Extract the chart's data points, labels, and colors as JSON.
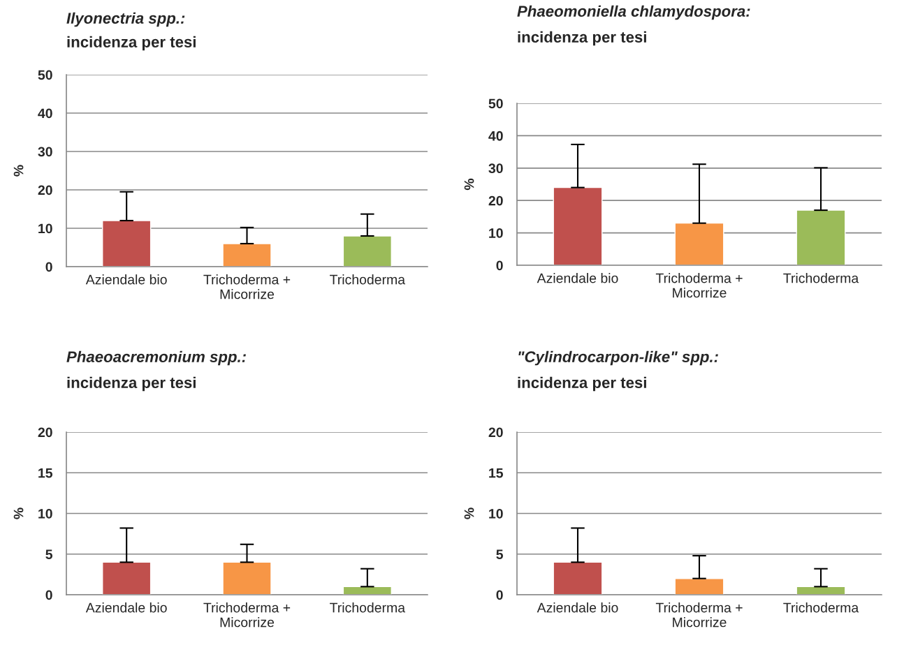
{
  "chart_data": [
    {
      "type": "bar",
      "title": "Ilyonectria spp.:",
      "subtitle": "incidenza per tesi",
      "ylabel": "%",
      "categories": [
        "Aziendale bio",
        "Trichoderma +\nMicorrize",
        "Trichoderma"
      ],
      "values": [
        12,
        6,
        8
      ],
      "colors": [
        "#c0504d",
        "#f79646",
        "#9bbb59"
      ],
      "errors": [
        [
          12,
          19.5
        ],
        [
          6,
          10.2
        ],
        [
          8,
          13.7
        ]
      ],
      "ylim": [
        0,
        50
      ],
      "yticks": [
        0,
        10,
        20,
        30,
        40,
        50
      ],
      "grid": "y"
    },
    {
      "type": "bar",
      "title": "Phaeomoniella chlamydospora:",
      "subtitle": "incidenza per tesi",
      "ylabel": "%",
      "categories": [
        "Aziendale bio",
        "Trichoderma +\nMicorrize",
        "Trichoderma"
      ],
      "values": [
        24,
        13,
        17
      ],
      "colors": [
        "#c0504d",
        "#f79646",
        "#9bbb59"
      ],
      "errors": [
        [
          24,
          37.3
        ],
        [
          13,
          31.2
        ],
        [
          17,
          30.1
        ]
      ],
      "ylim": [
        0,
        50
      ],
      "yticks": [
        0,
        10,
        20,
        30,
        40,
        50
      ],
      "grid": "y"
    },
    {
      "type": "bar",
      "title": "Phaeoacremonium spp.:",
      "subtitle": "incidenza per tesi",
      "ylabel": "%",
      "categories": [
        "Aziendale bio",
        "Trichoderma +\nMicorrize",
        "Trichoderma"
      ],
      "values": [
        4,
        4,
        1
      ],
      "colors": [
        "#c0504d",
        "#f79646",
        "#9bbb59"
      ],
      "errors": [
        [
          4,
          8.2
        ],
        [
          4,
          6.2
        ],
        [
          1,
          3.2
        ]
      ],
      "ylim": [
        0,
        20
      ],
      "yticks": [
        0,
        5,
        10,
        15,
        20
      ],
      "grid": "y"
    },
    {
      "type": "bar",
      "title": "\"Cylindrocarpon-like\" spp.:",
      "subtitle": "incidenza per tesi",
      "ylabel": "%",
      "categories": [
        "Aziendale bio",
        "Trichoderma +\nMicorrize",
        "Trichoderma"
      ],
      "values": [
        4,
        2,
        1
      ],
      "colors": [
        "#c0504d",
        "#f79646",
        "#9bbb59"
      ],
      "errors": [
        [
          4,
          8.2
        ],
        [
          2,
          4.8
        ],
        [
          1,
          3.2
        ]
      ],
      "ylim": [
        0,
        20
      ],
      "yticks": [
        0,
        5,
        10,
        15,
        20
      ],
      "grid": "y"
    }
  ]
}
